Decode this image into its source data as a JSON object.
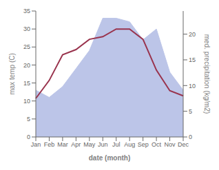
{
  "chart_data": {
    "type": "area",
    "categories": [
      "Jan",
      "Feb",
      "Mar",
      "Apr",
      "May",
      "Jun",
      "Jul",
      "Aug",
      "Sep",
      "Oct",
      "Nov",
      "Dec"
    ],
    "series": [
      {
        "type": "area",
        "color": "#bcc5e8",
        "values": [
          13,
          11,
          14,
          19,
          24,
          33,
          33,
          32,
          27,
          30,
          18,
          13
        ]
      },
      {
        "type": "line",
        "color": "#99334d",
        "axis": "y2",
        "values": [
          7.5,
          11,
          16,
          17,
          19,
          19.5,
          21,
          21,
          19,
          13,
          9,
          8
        ]
      }
    ],
    "ylim": [
      0,
      35
    ],
    "yticks": [
      0,
      5,
      10,
      15,
      20,
      25,
      30,
      35
    ],
    "y2lim": [
      0,
      24.5
    ],
    "y2ticks": [
      0,
      5,
      10,
      15,
      20
    ],
    "ylabel": "max temp (C)",
    "y2label": "med. precipitation (kg/m2)",
    "xlabel": "date (month)",
    "grid": false
  }
}
